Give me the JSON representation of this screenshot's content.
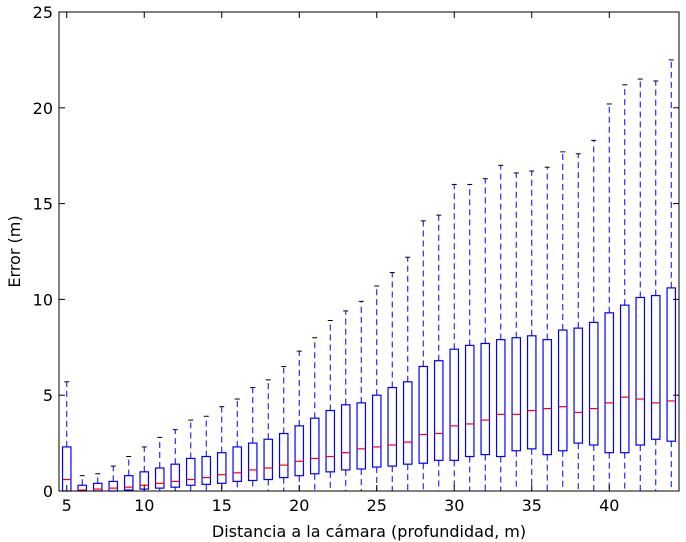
{
  "chart_data": {
    "type": "boxplot",
    "title": "",
    "xlabel": "Distancia a la cámara (profundidad, m)",
    "ylabel": "Error (m)",
    "xlim": [
      4.5,
      44.5
    ],
    "ylim": [
      0,
      25
    ],
    "xticks": [
      5,
      10,
      15,
      20,
      25,
      30,
      35,
      40
    ],
    "yticks": [
      0,
      5,
      10,
      15,
      20,
      25
    ],
    "grid": false,
    "box_color": "#0000ff",
    "median_color": "#ff0000",
    "whisker_color": "#0000ff",
    "cap_color": "#000000",
    "boxes": [
      {
        "x": 5,
        "whislo": 0,
        "q1": 0.0,
        "med": 0.6,
        "q3": 2.3,
        "whishi": 5.7
      },
      {
        "x": 6,
        "whislo": 0,
        "q1": 0.0,
        "med": 0.05,
        "q3": 0.3,
        "whishi": 0.8
      },
      {
        "x": 7,
        "whislo": 0,
        "q1": 0.0,
        "med": 0.1,
        "q3": 0.4,
        "whishi": 0.9
      },
      {
        "x": 8,
        "whislo": 0,
        "q1": 0.0,
        "med": 0.15,
        "q3": 0.5,
        "whishi": 1.3
      },
      {
        "x": 9,
        "whislo": 0,
        "q1": 0.05,
        "med": 0.2,
        "q3": 0.8,
        "whishi": 1.8
      },
      {
        "x": 10,
        "whislo": 0,
        "q1": 0.1,
        "med": 0.3,
        "q3": 1.0,
        "whishi": 2.3
      },
      {
        "x": 11,
        "whislo": 0,
        "q1": 0.15,
        "med": 0.4,
        "q3": 1.2,
        "whishi": 2.8
      },
      {
        "x": 12,
        "whislo": 0,
        "q1": 0.2,
        "med": 0.5,
        "q3": 1.4,
        "whishi": 3.2
      },
      {
        "x": 13,
        "whislo": 0,
        "q1": 0.3,
        "med": 0.6,
        "q3": 1.7,
        "whishi": 3.7
      },
      {
        "x": 14,
        "whislo": 0,
        "q1": 0.35,
        "med": 0.7,
        "q3": 1.8,
        "whishi": 3.9
      },
      {
        "x": 15,
        "whislo": 0,
        "q1": 0.4,
        "med": 0.85,
        "q3": 2.0,
        "whishi": 4.4
      },
      {
        "x": 16,
        "whislo": 0,
        "q1": 0.5,
        "med": 0.95,
        "q3": 2.3,
        "whishi": 4.8
      },
      {
        "x": 17,
        "whislo": 0,
        "q1": 0.55,
        "med": 1.1,
        "q3": 2.5,
        "whishi": 5.4
      },
      {
        "x": 18,
        "whislo": 0,
        "q1": 0.6,
        "med": 1.2,
        "q3": 2.7,
        "whishi": 5.8
      },
      {
        "x": 19,
        "whislo": 0,
        "q1": 0.7,
        "med": 1.35,
        "q3": 3.0,
        "whishi": 6.5
      },
      {
        "x": 20,
        "whislo": 0,
        "q1": 0.8,
        "med": 1.55,
        "q3": 3.4,
        "whishi": 7.3
      },
      {
        "x": 21,
        "whislo": 0,
        "q1": 0.9,
        "med": 1.7,
        "q3": 3.8,
        "whishi": 8.0
      },
      {
        "x": 22,
        "whislo": 0,
        "q1": 1.0,
        "med": 1.8,
        "q3": 4.2,
        "whishi": 8.9
      },
      {
        "x": 23,
        "whislo": 0,
        "q1": 1.1,
        "med": 2.0,
        "q3": 4.5,
        "whishi": 9.4
      },
      {
        "x": 24,
        "whislo": 0,
        "q1": 1.15,
        "med": 2.2,
        "q3": 4.6,
        "whishi": 9.9
      },
      {
        "x": 25,
        "whislo": 0,
        "q1": 1.25,
        "med": 2.3,
        "q3": 5.0,
        "whishi": 10.7
      },
      {
        "x": 26,
        "whislo": 0,
        "q1": 1.3,
        "med": 2.4,
        "q3": 5.4,
        "whishi": 11.4
      },
      {
        "x": 27,
        "whislo": 0,
        "q1": 1.4,
        "med": 2.55,
        "q3": 5.7,
        "whishi": 12.2
      },
      {
        "x": 28,
        "whislo": 0,
        "q1": 1.45,
        "med": 2.95,
        "q3": 6.5,
        "whishi": 14.1
      },
      {
        "x": 29,
        "whislo": 0,
        "q1": 1.6,
        "med": 3.0,
        "q3": 6.8,
        "whishi": 14.4
      },
      {
        "x": 30,
        "whislo": 0,
        "q1": 1.6,
        "med": 3.4,
        "q3": 7.4,
        "whishi": 16.0
      },
      {
        "x": 31,
        "whislo": 0,
        "q1": 1.8,
        "med": 3.5,
        "q3": 7.6,
        "whishi": 16.0
      },
      {
        "x": 32,
        "whislo": 0,
        "q1": 1.9,
        "med": 3.7,
        "q3": 7.7,
        "whishi": 16.3
      },
      {
        "x": 33,
        "whislo": 0,
        "q1": 1.8,
        "med": 4.0,
        "q3": 7.9,
        "whishi": 17.0
      },
      {
        "x": 34,
        "whislo": 0,
        "q1": 2.1,
        "med": 4.0,
        "q3": 8.0,
        "whishi": 16.6
      },
      {
        "x": 35,
        "whislo": 0,
        "q1": 2.2,
        "med": 4.2,
        "q3": 8.1,
        "whishi": 16.7
      },
      {
        "x": 36,
        "whislo": 0,
        "q1": 1.9,
        "med": 4.3,
        "q3": 7.9,
        "whishi": 16.9
      },
      {
        "x": 37,
        "whislo": 0,
        "q1": 2.1,
        "med": 4.4,
        "q3": 8.4,
        "whishi": 17.7
      },
      {
        "x": 38,
        "whislo": 0,
        "q1": 2.5,
        "med": 4.1,
        "q3": 8.5,
        "whishi": 17.6
      },
      {
        "x": 39,
        "whislo": 0,
        "q1": 2.4,
        "med": 4.3,
        "q3": 8.8,
        "whishi": 18.3
      },
      {
        "x": 40,
        "whislo": 0,
        "q1": 2.0,
        "med": 4.6,
        "q3": 9.3,
        "whishi": 20.2
      },
      {
        "x": 41,
        "whislo": 0,
        "q1": 2.0,
        "med": 4.9,
        "q3": 9.7,
        "whishi": 21.2
      },
      {
        "x": 42,
        "whislo": 0,
        "q1": 2.4,
        "med": 4.8,
        "q3": 10.1,
        "whishi": 21.5
      },
      {
        "x": 43,
        "whislo": 0,
        "q1": 2.7,
        "med": 4.6,
        "q3": 10.2,
        "whishi": 21.4
      },
      {
        "x": 44,
        "whislo": 0,
        "q1": 2.6,
        "med": 4.7,
        "q3": 10.6,
        "whishi": 22.5
      }
    ]
  }
}
